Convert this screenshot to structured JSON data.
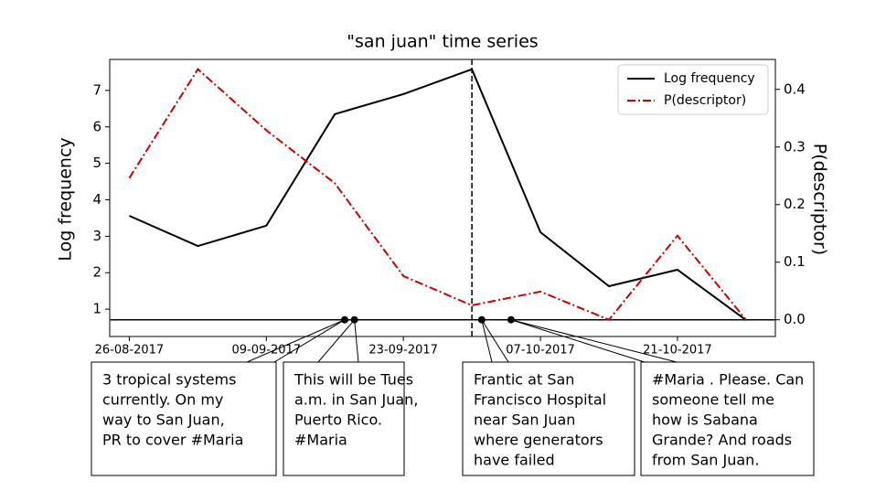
{
  "chart_data": {
    "type": "line",
    "title": "\"san juan\" time series",
    "y_label": "Log frequency",
    "y2_label": "P(descriptor)",
    "x": [
      "26-08-2017",
      "02-09-2017",
      "09-09-2017",
      "16-09-2017",
      "23-09-2017",
      "30-09-2017",
      "07-10-2017",
      "14-10-2017",
      "21-10-2017",
      "28-10-2017"
    ],
    "series": [
      {
        "name": "Log frequency",
        "color": "#000000",
        "dash": "solid",
        "values": [
          3.56,
          2.73,
          3.29,
          6.35,
          6.9,
          7.58,
          3.11,
          1.63,
          2.08,
          0.7
        ]
      },
      {
        "name": "P(descriptor)",
        "color": "#cc0000",
        "dash": "dashdot",
        "axis": "y2",
        "values": [
          0.246,
          0.435,
          0.329,
          0.237,
          0.076,
          0.025,
          0.049,
          0.0,
          0.146,
          0.0
        ]
      }
    ],
    "xlim": [
      "24-08-2017",
      "31-10-2017"
    ],
    "xticks": [
      "26-08-2017",
      "09-09-2017",
      "23-09-2017",
      "07-10-2017",
      "21-10-2017"
    ],
    "ylim": [
      0.25,
      7.85
    ],
    "yticks": [
      1,
      2,
      3,
      4,
      5,
      6,
      7
    ],
    "y2lim": [
      -0.029,
      0.452
    ],
    "y2ticks": [
      {
        "value": 0,
        "label": "0.0"
      },
      0.1,
      0.2,
      0.3,
      0.4
    ],
    "vline_x": "30-09-2017",
    "hline_y2": 0,
    "legend": "upper right",
    "annotations": [
      {
        "x": "17-09-2017",
        "text": [
          "3 tropical systems",
          "currently. On my",
          "way to San Juan,",
          "PR to cover #Maria"
        ]
      },
      {
        "x": "18-09-2017",
        "text": [
          "This will be Tues",
          "a.m. in San Juan,",
          "Puerto Rico.",
          "#Maria"
        ]
      },
      {
        "x": "01-10-2017",
        "text": [
          "Frantic at San",
          "Francisco Hospital",
          "near San Juan",
          "where generators",
          "have failed"
        ]
      },
      {
        "x": "04-10-2017",
        "text": [
          "#Maria . Please. Can",
          "someone tell me",
          "how is Sabana",
          "Grande? And roads",
          "from San Juan."
        ]
      }
    ]
  }
}
